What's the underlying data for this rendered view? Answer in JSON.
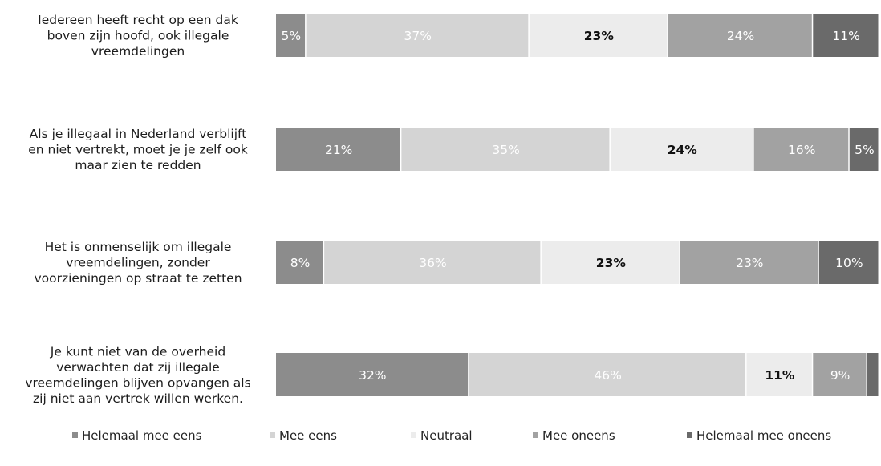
{
  "chart_data": {
    "type": "bar",
    "orientation": "horizontal",
    "stacked": true,
    "percent_stacked": true,
    "grid": false,
    "legend_position": "bottom",
    "categories": [
      "Iedereen heeft recht op een dak boven zijn hoofd, ook illegale vreemdelingen",
      "Als je illegaal in Nederland verblijft en niet vertrekt, moet je je zelf ook maar zien te redden",
      "Het is onmenselijk om illegale vreemdelingen, zonder voorzieningen op straat te zetten",
      "Je kunt niet van de overheid verwachten dat zij illegale vreemdelingen blijven opvangen als zij niet aan vertrek willen werken."
    ],
    "category_lines": [
      [
        "Iedereen heeft recht op een dak",
        "boven zijn hoofd, ook illegale",
        "vreemdelingen"
      ],
      [
        "Als je illegaal in Nederland verblijft",
        "en niet vertrekt, moet je je zelf ook",
        "maar zien te redden"
      ],
      [
        "Het is onmenselijk om illegale",
        "vreemdelingen, zonder",
        "voorzieningen op straat te zetten"
      ],
      [
        "Je kunt niet van de overheid",
        "verwachten dat zij illegale",
        "vreemdelingen blijven opvangen als",
        "zij niet aan vertrek willen werken."
      ]
    ],
    "series": [
      {
        "name": "Helemaal mee eens",
        "color": "#8c8c8c",
        "values": [
          5,
          21,
          8,
          32
        ],
        "labels": [
          "5%",
          "21%",
          "8%",
          "32%"
        ]
      },
      {
        "name": "Mee eens",
        "color": "#d4d4d4",
        "values": [
          37,
          35,
          36,
          46
        ],
        "labels": [
          "37%",
          "35%",
          "36%",
          "46%"
        ]
      },
      {
        "name": "Neutraal",
        "color": "#ececec",
        "values": [
          23,
          24,
          23,
          11
        ],
        "labels": [
          "23%",
          "24%",
          "23%",
          "11%"
        ]
      },
      {
        "name": "Mee oneens",
        "color": "#a2a2a2",
        "values": [
          24,
          16,
          23,
          9
        ],
        "labels": [
          "24%",
          "16%",
          "23%",
          "9%"
        ]
      },
      {
        "name": "Helemaal mee oneens",
        "color": "#6a6a6a",
        "values": [
          11,
          5,
          10,
          2
        ],
        "labels": [
          "11%",
          "5%",
          "10%",
          ""
        ]
      }
    ]
  }
}
